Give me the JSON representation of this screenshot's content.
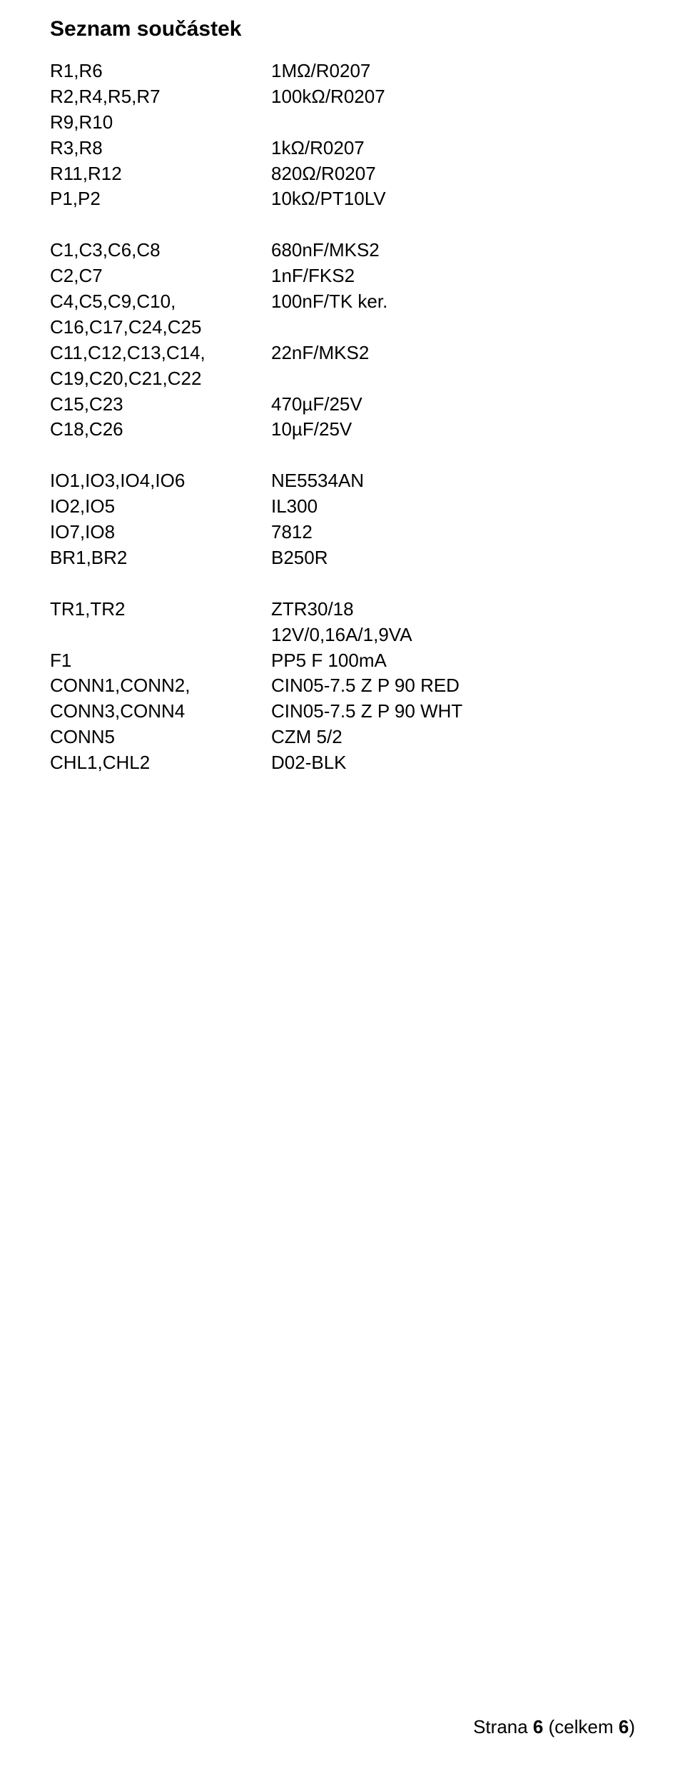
{
  "title": "Seznam součástek",
  "sections": [
    {
      "rows": [
        {
          "left": "R1,R6",
          "right": "1MΩ/R0207"
        },
        {
          "left": "R2,R4,R5,R7",
          "right": "100kΩ/R0207"
        },
        {
          "left": "R9,R10",
          "right": ""
        },
        {
          "left": "R3,R8",
          "right": "1kΩ/R0207"
        },
        {
          "left": "R11,R12",
          "right": "820Ω/R0207"
        },
        {
          "left": "P1,P2",
          "right": "10kΩ/PT10LV"
        }
      ]
    },
    {
      "rows": [
        {
          "left": "C1,C3,C6,C8",
          "right": "680nF/MKS2"
        },
        {
          "left": "C2,C7",
          "right": "1nF/FKS2"
        },
        {
          "left": "C4,C5,C9,C10,",
          "right": "100nF/TK ker."
        },
        {
          "left": "C16,C17,C24,C25",
          "right": ""
        },
        {
          "left": "C11,C12,C13,C14,",
          "right": "22nF/MKS2"
        },
        {
          "left": "C19,C20,C21,C22",
          "right": ""
        },
        {
          "left": "C15,C23",
          "right": "470µF/25V"
        },
        {
          "left": "C18,C26",
          "right": "10µF/25V"
        }
      ]
    },
    {
      "rows": [
        {
          "left": "IO1,IO3,IO4,IO6",
          "right": "NE5534AN"
        },
        {
          "left": "IO2,IO5",
          "right": "IL300"
        },
        {
          "left": "IO7,IO8",
          "right": "7812"
        },
        {
          "left": "BR1,BR2",
          "right": "B250R"
        }
      ]
    },
    {
      "rows": [
        {
          "left": "TR1,TR2",
          "right": "ZTR30/18"
        },
        {
          "left": "",
          "right": "12V/0,16A/1,9VA"
        },
        {
          "left": "F1",
          "right": "PP5 F 100mA"
        },
        {
          "left": "CONN1,CONN2,",
          "right": "CIN05-7.5 Z P 90 RED"
        },
        {
          "left": "CONN3,CONN4",
          "right": "CIN05-7.5 Z P 90 WHT"
        },
        {
          "left": "CONN5",
          "right": "CZM 5/2"
        },
        {
          "left": "CHL1,CHL2",
          "right": "D02-BLK"
        }
      ]
    }
  ],
  "footer": {
    "prefix": "Strana ",
    "page": "6",
    "middle": " (celkem ",
    "total": "6",
    "suffix": ")"
  }
}
